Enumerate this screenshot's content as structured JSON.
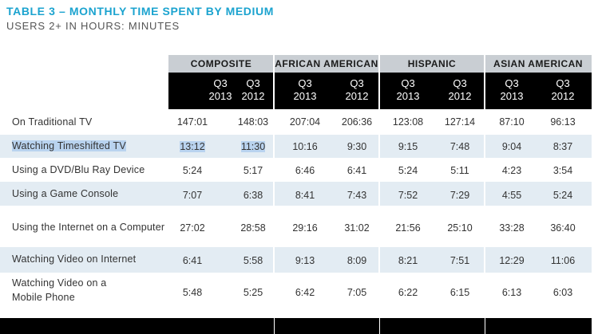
{
  "title": "TABLE 3 – MONTHLY TIME SPENT BY MEDIUM",
  "subtitle": "USERS 2+ IN HOURS: MINUTES",
  "groups": [
    "COMPOSITE",
    "AFRICAN AMERICAN",
    "HISPANIC",
    "ASIAN AMERICAN"
  ],
  "subheaders": [
    {
      "q": "Q3",
      "y": "2013"
    },
    {
      "q": "Q3",
      "y": "2012"
    },
    {
      "q": "Q3",
      "y": "2013"
    },
    {
      "q": "Q3",
      "y": "2012"
    },
    {
      "q": "Q3",
      "y": "2013"
    },
    {
      "q": "Q3",
      "y": "2012"
    },
    {
      "q": "Q3",
      "y": "2013"
    },
    {
      "q": "Q3",
      "y": "2012"
    }
  ],
  "rows": [
    {
      "label": "On Traditional TV",
      "values": [
        "147:01",
        "148:03",
        "207:04",
        "206:36",
        "123:08",
        "127:14",
        "87:10",
        "96:13"
      ]
    },
    {
      "label": "Watching Timeshifted TV",
      "values": [
        "13:12",
        "11:30",
        "10:16",
        "9:30",
        "9:15",
        "7:48",
        "9:04",
        "8:37"
      ]
    },
    {
      "label": "Using a DVD/Blu Ray Device",
      "values": [
        "5:24",
        "5:17",
        "6:46",
        "6:41",
        "5:24",
        "5:11",
        "4:23",
        "3:54"
      ]
    },
    {
      "label": "Using a Game Console",
      "values": [
        "7:07",
        "6:38",
        "8:41",
        "7:43",
        "7:52",
        "7:29",
        "4:55",
        "5:24"
      ]
    },
    {
      "label": "Using the Internet on a Computer",
      "values": [
        "27:02",
        "28:58",
        "29:16",
        "31:02",
        "21:56",
        "25:10",
        "33:28",
        "36:40"
      ]
    },
    {
      "label": "Watching Video on Internet",
      "values": [
        "6:41",
        "5:58",
        "9:13",
        "8:09",
        "8:21",
        "7:51",
        "12:29",
        "11:06"
      ]
    },
    {
      "label1": "Watching Video on a",
      "label2": "Mobile Phone",
      "values": [
        "5:48",
        "5:25",
        "6:42",
        "7:05",
        "6:22",
        "6:15",
        "6:13",
        "6:03"
      ]
    }
  ]
}
